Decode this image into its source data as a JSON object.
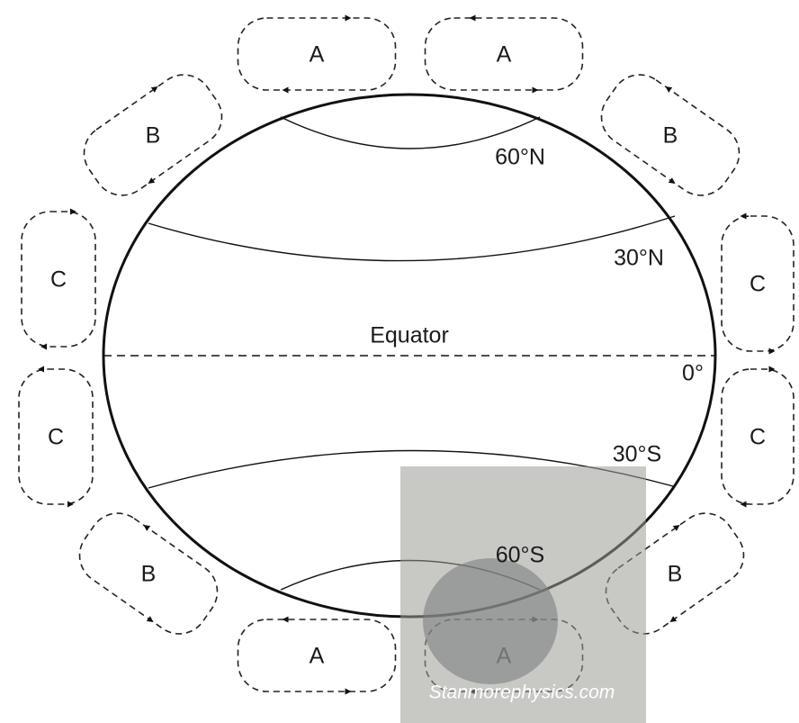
{
  "latitudes": {
    "n60": "60°N",
    "n30": "30°N",
    "equator": "Equator",
    "zero": "0°",
    "s30": "30°S",
    "s60": "60°S"
  },
  "cells": [
    "A",
    "A",
    "B",
    "B",
    "C",
    "C",
    "C",
    "C",
    "B",
    "B",
    "A",
    "A"
  ],
  "watermark": "Stanmorephysics.com"
}
